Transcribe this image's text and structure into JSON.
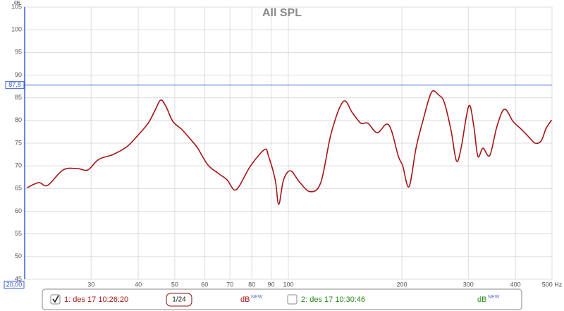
{
  "chart_data": {
    "type": "line",
    "title": "All SPL",
    "y_label": "dB",
    "x_log": true,
    "grid": true,
    "xlim": [
      20,
      500
    ],
    "ylim": [
      45,
      105
    ],
    "xticks": [
      30,
      40,
      50,
      60,
      70,
      80,
      90,
      100,
      200,
      300,
      400,
      {
        "value": 500,
        "label": "500 Hz"
      }
    ],
    "yticks": [
      45,
      50,
      55,
      60,
      65,
      70,
      75,
      80,
      85,
      90,
      95,
      100,
      105
    ],
    "x_cursor": {
      "value": 20,
      "label": "20,00"
    },
    "y_cursor": {
      "value": 87.8,
      "label": "87,8"
    },
    "cursor_color": "#3a5fd9",
    "x": [
      20.3,
      21.8,
      23,
      25.3,
      27.6,
      29.4,
      31.4,
      34.3,
      37.3,
      39.8,
      42.5,
      44.3,
      45.9,
      47.5,
      49.4,
      52.2,
      55.5,
      57.5,
      61.2,
      65.3,
      68.8,
      71.8,
      74.3,
      79.4,
      86.5,
      88.5,
      92.3,
      94.3,
      97.1,
      101.4,
      107.1,
      114.4,
      122,
      130,
      139.9,
      147.8,
      155.7,
      162.4,
      172,
      181.8,
      187.6,
      195.7,
      201,
      208.9,
      218,
      227.6,
      239.6,
      250.4,
      259,
      270,
      279,
      287,
      300.8,
      310,
      318,
      328,
      342,
      357,
      374,
      394,
      414,
      436,
      451,
      468,
      482.6,
      499
    ],
    "series": [
      {
        "name": "1: des 17 10:26:20",
        "color": "#a51515",
        "visible": true,
        "smoothing": "1/24",
        "unit": "dB",
        "unit_tag": "NEW",
        "values": [
          65.2,
          66.3,
          65.7,
          69.1,
          69.4,
          69.1,
          71.4,
          72.5,
          74.2,
          76.6,
          79.4,
          82.2,
          84.5,
          82.9,
          79.8,
          78.0,
          75.5,
          73.9,
          70.2,
          68.3,
          66.9,
          64.7,
          65.7,
          70.0,
          73.6,
          72.3,
          66.9,
          61.5,
          66.9,
          68.9,
          66.4,
          64.3,
          66.4,
          77.3,
          84.2,
          81.7,
          79.4,
          79.4,
          77.3,
          79.2,
          77.8,
          72.1,
          70.0,
          65.4,
          73.9,
          80.1,
          86.2,
          85.6,
          84.0,
          77.8,
          71.1,
          73.9,
          83.2,
          78.9,
          72.1,
          73.9,
          72.3,
          78.6,
          82.5,
          79.8,
          78.1,
          76.2,
          75.0,
          75.5,
          78.3,
          80.1
        ]
      },
      {
        "name": "2: des 17 10:30:46",
        "color": "#2a8a1a",
        "visible": false,
        "unit": "dB",
        "unit_tag": "NEW"
      }
    ]
  }
}
